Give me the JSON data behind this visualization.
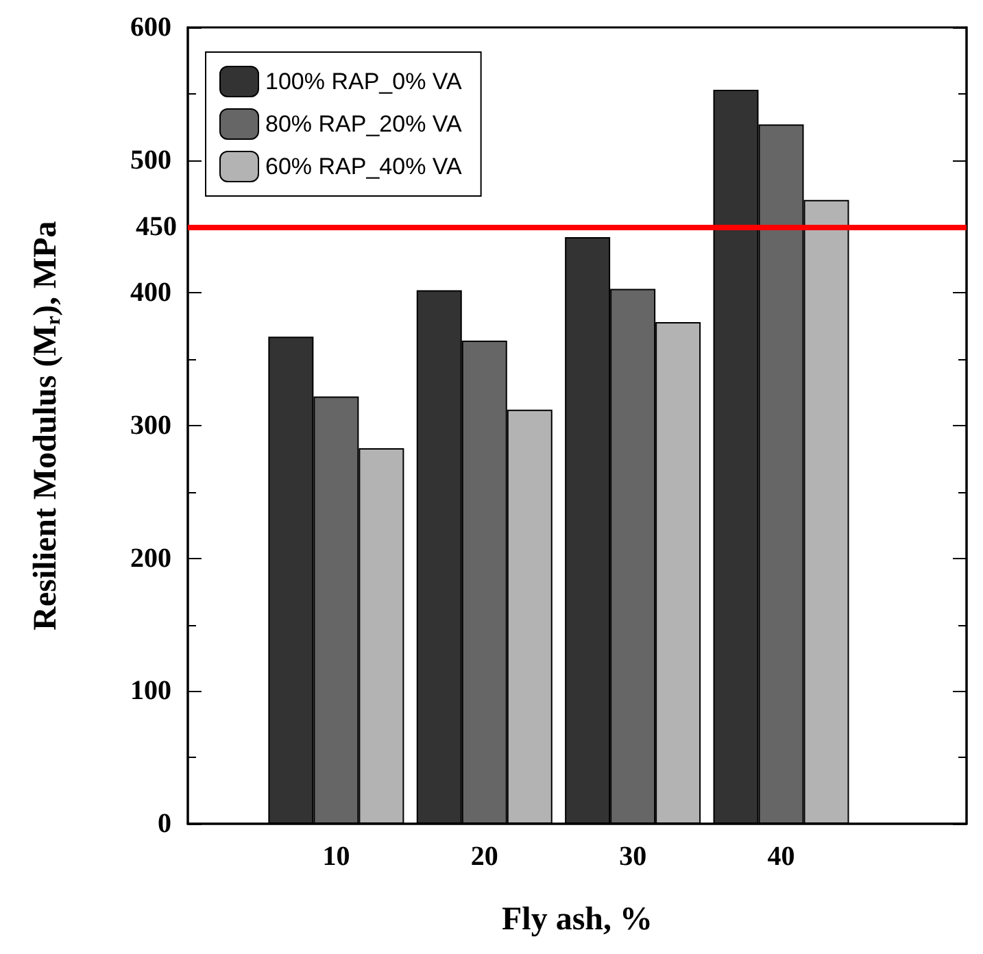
{
  "chart_data": {
    "type": "bar",
    "xlabel": "Fly ash, %",
    "ylabel": "Resilient Modulus (M$_{r}$), MPa",
    "x": [
      10,
      20,
      30,
      40
    ],
    "xlim": [
      0,
      52.5
    ],
    "xticks": [
      10,
      20,
      30,
      40
    ],
    "ylim": [
      0,
      600
    ],
    "yticks": [
      0,
      100,
      200,
      300,
      400,
      500,
      600
    ],
    "series": [
      {
        "name": "100% RAP_0% VA",
        "color": "#333333",
        "values": [
          367,
          402,
          442,
          553
        ]
      },
      {
        "name": "80% RAP_20% VA",
        "color": "#666666",
        "values": [
          322,
          364,
          403,
          527
        ]
      },
      {
        "name": "60% RAP_40% VA",
        "color": "#b3b3b3",
        "values": [
          283,
          312,
          378,
          470
        ]
      }
    ],
    "ref_lines": [
      {
        "axis": "y",
        "value": 450,
        "label": "450",
        "color": "#ff0000"
      }
    ],
    "legend": "top left",
    "grid": false
  }
}
